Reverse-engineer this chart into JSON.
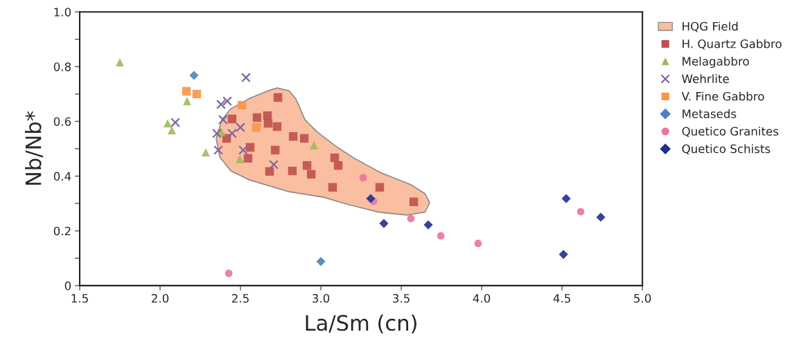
{
  "chart_data": {
    "type": "scatter",
    "xlabel": "La/Sm (cn)",
    "ylabel": "Nb/Nb*",
    "xlim": [
      1.5,
      5.0
    ],
    "ylim": [
      0,
      1.0
    ],
    "xticks": [
      1.5,
      {
        "value": 2.0,
        "label": "2.0"
      },
      2.5,
      {
        "value": 3.0,
        "label": "3.0"
      },
      3.5,
      {
        "value": 4.0,
        "label": "4.0"
      },
      4.5,
      {
        "value": 5.0,
        "label": "5.0"
      }
    ],
    "yticks": [
      0,
      {
        "value": 0.1,
        "label": null
      },
      0.2,
      {
        "value": 0.3,
        "label": null
      },
      0.4,
      {
        "value": 0.5,
        "label": null
      },
      0.6,
      {
        "value": 0.7,
        "label": null
      },
      0.8,
      {
        "value": 0.9,
        "label": null
      },
      {
        "value": 1.0,
        "label": "1.0"
      }
    ],
    "grid": false,
    "legend": "right",
    "series": [
      {
        "name": "HQG Field",
        "type": "area",
        "color": "#f9bfa0",
        "x": [
          2.672,
          2.728,
          2.802,
          2.845,
          2.901,
          2.974,
          3.103,
          3.203,
          3.375,
          3.56,
          3.647,
          3.677,
          3.647,
          3.534,
          3.362,
          3.159,
          3.017,
          2.802,
          2.556,
          2.44,
          2.371,
          2.349,
          2.384,
          2.44,
          2.556
        ],
        "values": [
          0.712,
          0.722,
          0.712,
          0.682,
          0.606,
          0.563,
          0.505,
          0.467,
          0.412,
          0.369,
          0.336,
          0.303,
          0.268,
          0.258,
          0.268,
          0.298,
          0.323,
          0.343,
          0.386,
          0.419,
          0.47,
          0.538,
          0.606,
          0.646,
          0.684
        ]
      },
      {
        "name": "H. Quartz Gabbro",
        "color": "#c0504d",
        "marker": "square",
        "x": [
          2.733,
          2.448,
          2.603,
          2.668,
          2.672,
          2.728,
          2.414,
          2.56,
          2.547,
          2.716,
          2.681,
          2.828,
          2.897,
          2.823,
          2.914,
          2.94,
          3.086,
          3.108,
          3.073,
          3.366,
          3.578
        ],
        "values": [
          0.687,
          0.609,
          0.614,
          0.621,
          0.593,
          0.581,
          0.538,
          0.505,
          0.465,
          0.495,
          0.417,
          0.545,
          0.538,
          0.419,
          0.439,
          0.407,
          0.467,
          0.439,
          0.359,
          0.359,
          0.306
        ]
      },
      {
        "name": "Melagabbro",
        "color": "#9bbb59",
        "marker": "triangle",
        "x": [
          1.75,
          2.168,
          2.047,
          2.073,
          2.284,
          2.38,
          2.496,
          2.957
        ],
        "values": [
          0.816,
          0.674,
          0.593,
          0.568,
          0.487,
          0.561,
          0.462,
          0.513
        ]
      },
      {
        "name": "Wehrlite",
        "color": "#8064a2",
        "marker": "cross",
        "x": [
          2.095,
          2.379,
          2.418,
          2.534,
          2.392,
          2.353,
          2.448,
          2.5,
          2.362,
          2.517,
          2.707
        ],
        "values": [
          0.596,
          0.662,
          0.674,
          0.76,
          0.606,
          0.556,
          0.556,
          0.578,
          0.495,
          0.495,
          0.442
        ]
      },
      {
        "name": "V. Fine Gabbro",
        "color": "#f79646",
        "marker": "square",
        "x": [
          2.164,
          2.228,
          2.509,
          2.599
        ],
        "values": [
          0.71,
          0.7,
          0.659,
          0.578
        ]
      },
      {
        "name": "Metaseds",
        "color": "#4f81bd",
        "marker": "diamond",
        "x": [
          2.211,
          3.0
        ],
        "values": [
          0.768,
          0.088
        ]
      },
      {
        "name": "Quetico Granites",
        "color": "#e9769a",
        "marker": "circle",
        "x": [
          2.427,
          3.263,
          3.328,
          3.56,
          3.746,
          3.978,
          4.616
        ],
        "values": [
          0.045,
          0.394,
          0.308,
          0.245,
          0.182,
          0.154,
          0.27
        ]
      },
      {
        "name": "Quetico Schists",
        "color": "#1f2f8f",
        "marker": "diamond",
        "x": [
          3.31,
          3.392,
          3.668,
          4.526,
          4.741,
          4.509
        ],
        "values": [
          0.318,
          0.227,
          0.222,
          0.318,
          0.25,
          0.114
        ]
      }
    ]
  }
}
